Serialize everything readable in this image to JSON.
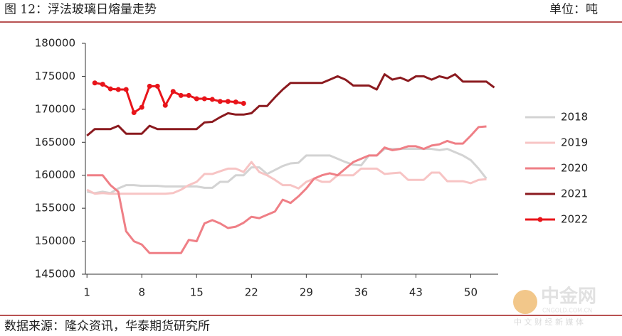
{
  "header": {
    "title": "图 12：浮法玻璃日熔量走势",
    "unit": "单位：吨"
  },
  "footer": {
    "source": "数据来源：隆众资讯，华泰期货研究所"
  },
  "watermark": {
    "name": "中金网",
    "site": "CNGOLD.COM.CN",
    "slogan": "中 文 财 经 新 媒 体"
  },
  "chart_data": {
    "type": "line",
    "x": [
      1,
      2,
      3,
      4,
      5,
      6,
      7,
      8,
      9,
      10,
      11,
      12,
      13,
      14,
      15,
      16,
      17,
      18,
      19,
      20,
      21,
      22,
      23,
      24,
      25,
      26,
      27,
      28,
      29,
      30,
      31,
      32,
      33,
      34,
      35,
      36,
      37,
      38,
      39,
      40,
      41,
      42,
      43,
      44,
      45,
      46,
      47,
      48,
      49,
      50,
      51,
      52,
      53
    ],
    "xlim": [
      0.8,
      53.5
    ],
    "xticks": [
      1,
      8,
      15,
      22,
      29,
      36,
      43,
      50
    ],
    "ylim": [
      145000,
      180000
    ],
    "yticks": [
      145000,
      150000,
      155000,
      160000,
      165000,
      170000,
      175000,
      180000
    ],
    "legend": "right",
    "series": [
      {
        "name": "2018",
        "color": "#d3d3d3",
        "values": [
          157500,
          157300,
          157500,
          157300,
          158000,
          158500,
          158500,
          158400,
          158400,
          158400,
          158300,
          158300,
          158300,
          158300,
          158300,
          158100,
          158100,
          159000,
          159000,
          160000,
          160000,
          161200,
          161200,
          160200,
          160800,
          161400,
          161800,
          161900,
          163000,
          163000,
          163000,
          163000,
          162500,
          162000,
          161600,
          161500,
          163000,
          163000,
          164000,
          164000,
          164000,
          164000,
          164000,
          164000,
          164000,
          163800,
          164000,
          163500,
          163000,
          162300,
          161000,
          159500,
          null
        ]
      },
      {
        "name": "2019",
        "color": "#f7c4c4",
        "values": [
          157800,
          157200,
          157300,
          157200,
          157200,
          157200,
          157200,
          157200,
          157200,
          157200,
          157200,
          157300,
          157800,
          158500,
          159000,
          160200,
          160200,
          160600,
          161000,
          161000,
          160500,
          162000,
          160500,
          160000,
          159300,
          158500,
          158500,
          158000,
          159000,
          159500,
          159000,
          159000,
          160000,
          160000,
          160000,
          161000,
          161000,
          161000,
          160200,
          160300,
          160400,
          159300,
          159300,
          159300,
          160400,
          160400,
          159100,
          159100,
          159100,
          158800,
          159300,
          159400,
          null
        ]
      },
      {
        "name": "2020",
        "color": "#ef7f86",
        "values": [
          160000,
          160000,
          160000,
          158500,
          157500,
          151500,
          150000,
          149500,
          148200,
          148200,
          148200,
          148200,
          148200,
          150200,
          150000,
          152700,
          153200,
          152700,
          152000,
          152200,
          152800,
          153700,
          153500,
          154000,
          154500,
          156300,
          155800,
          156800,
          158000,
          159500,
          160000,
          160300,
          160000,
          161000,
          162000,
          162500,
          163000,
          163000,
          164200,
          163800,
          164000,
          164400,
          164400,
          164000,
          164500,
          164700,
          165200,
          164800,
          164800,
          166000,
          167300,
          167400,
          null
        ]
      },
      {
        "name": "2021",
        "color": "#8b1a1f",
        "values": [
          166000,
          167000,
          167000,
          167000,
          167500,
          166300,
          166300,
          166300,
          167500,
          167000,
          167000,
          167000,
          167000,
          167000,
          167000,
          168000,
          168100,
          168800,
          169400,
          169200,
          169200,
          169400,
          170500,
          170500,
          171800,
          173000,
          174000,
          174000,
          174000,
          174000,
          174000,
          174500,
          175000,
          174500,
          173600,
          173600,
          173600,
          173000,
          175300,
          174500,
          174800,
          174300,
          175000,
          175000,
          174500,
          175000,
          174700,
          175300,
          174200,
          174200,
          174200,
          174200,
          173300
        ]
      },
      {
        "name": "2022",
        "color": "#e8141a",
        "markers": true,
        "values": [
          null,
          174000,
          173800,
          173100,
          173000,
          173000,
          169500,
          170300,
          173500,
          173500,
          170600,
          172700,
          172100,
          172100,
          171600,
          171600,
          171500,
          171200,
          171200,
          171100,
          170900,
          null,
          null,
          null,
          null,
          null,
          null,
          null,
          null,
          null,
          null,
          null,
          null,
          null,
          null,
          null,
          null,
          null,
          null,
          null,
          null,
          null,
          null,
          null,
          null,
          null,
          null,
          null,
          null,
          null,
          null,
          null,
          null
        ]
      }
    ]
  }
}
